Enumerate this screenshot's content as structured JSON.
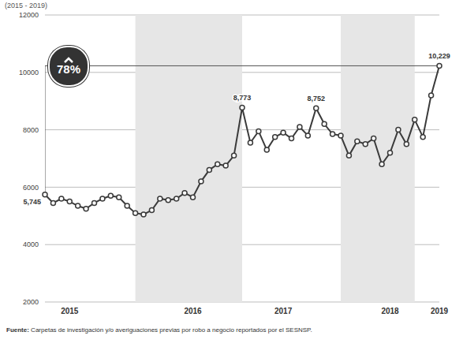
{
  "chart_data": {
    "type": "line",
    "subtitle": "(2015 - 2019)",
    "categories": [
      null,
      null,
      null,
      "2015",
      null,
      null,
      null,
      null,
      null,
      null,
      null,
      null,
      null,
      null,
      null,
      null,
      null,
      null,
      "2016",
      null,
      null,
      null,
      null,
      null,
      null,
      null,
      null,
      null,
      null,
      "2017",
      null,
      null,
      null,
      null,
      null,
      null,
      null,
      null,
      null,
      null,
      null,
      null,
      "2018",
      null,
      null,
      null,
      null,
      null,
      "2019"
    ],
    "values": [
      5745,
      5450,
      5600,
      5500,
      5350,
      5250,
      5450,
      5600,
      5700,
      5650,
      5350,
      5100,
      5050,
      5200,
      5600,
      5550,
      5600,
      5800,
      5650,
      6200,
      6600,
      6800,
      6750,
      7100,
      8773,
      7550,
      7950,
      7300,
      7750,
      7900,
      7700,
      8100,
      7800,
      8752,
      8200,
      7850,
      7800,
      7100,
      7600,
      7500,
      7700,
      6800,
      7200,
      8000,
      7500,
      8350,
      7750,
      9200,
      10229
    ],
    "value_labels": [
      "5,745",
      null,
      null,
      null,
      null,
      null,
      null,
      null,
      null,
      null,
      null,
      null,
      null,
      null,
      null,
      null,
      null,
      null,
      null,
      null,
      null,
      null,
      null,
      null,
      "8,773",
      null,
      null,
      null,
      null,
      null,
      null,
      null,
      null,
      "8,752",
      null,
      null,
      null,
      null,
      null,
      null,
      null,
      null,
      null,
      null,
      null,
      null,
      null,
      null,
      "10,229"
    ],
    "data_labels": true,
    "color": "#3a3a3a",
    "marker": "circle",
    "ylim": [
      2000,
      12000
    ],
    "yticks": [
      2000,
      4000,
      6000,
      8000,
      10000,
      12000
    ],
    "grid": true,
    "annotations": [
      "78%"
    ],
    "source": "Fuente: Carpetas de investigación y/o averiguaciones previas por robo a negocio reportados por el SESNSP."
  }
}
